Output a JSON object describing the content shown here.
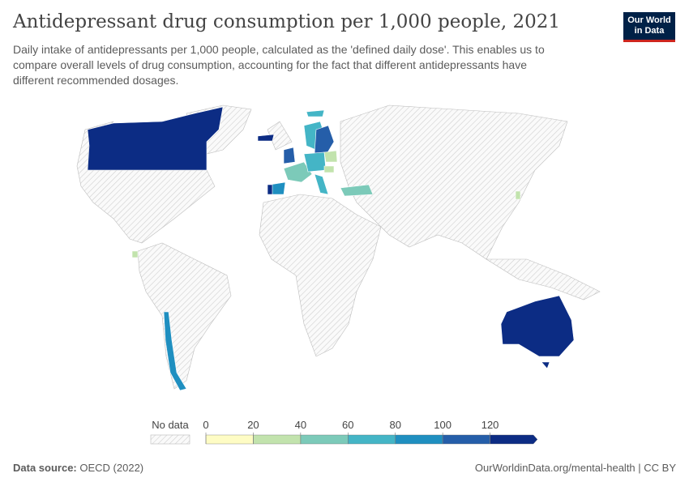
{
  "header": {
    "title": "Antidepressant drug consumption per 1,000 people, 2021",
    "subtitle": "Daily intake of antidepressants per 1,000 people, calculated as the 'defined daily dose'. This enables us to compare overall levels of drug consumption, accounting for the fact that different antidepressants have different recommended dosages.",
    "logo": [
      "Our World",
      "in Data"
    ]
  },
  "legend": {
    "no_data": "No data",
    "ticks": [
      0,
      20,
      40,
      60,
      80,
      100,
      120
    ],
    "colors": [
      "#fefcc4",
      "#c2e3ad",
      "#7ccab9",
      "#44b5c6",
      "#1f8fc0",
      "#255ea9",
      "#0c2c84"
    ]
  },
  "footer": {
    "source_label": "Data source:",
    "source": "OECD (2022)",
    "link": "OurWorldinData.org/mental-health | CC BY"
  }
}
